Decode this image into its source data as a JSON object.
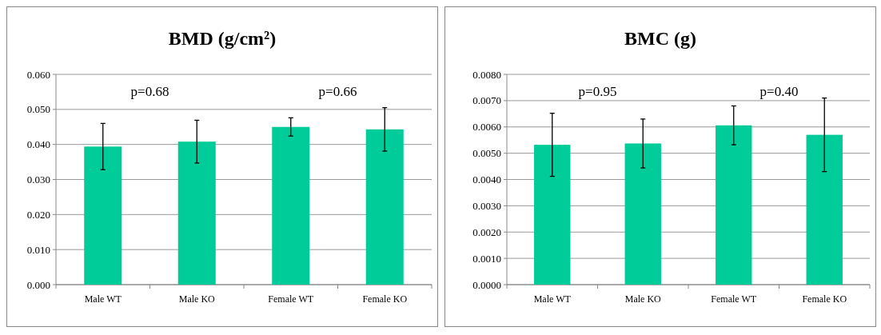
{
  "chart_data": [
    {
      "type": "bar",
      "title": "BMD (g/cm²)",
      "categories": [
        "Male WT",
        "Male KO",
        "Female WT",
        "Female KO"
      ],
      "values": [
        0.0394,
        0.0408,
        0.045,
        0.0443
      ],
      "errors": [
        0.0066,
        0.0061,
        0.0026,
        0.0062
      ],
      "color": "#00cc99",
      "ylim": [
        0,
        0.06
      ],
      "yticks": [
        {
          "value": 0,
          "label": "0.000"
        },
        {
          "value": 0.01,
          "label": "0.010"
        },
        {
          "value": 0.02,
          "label": "0.020"
        },
        {
          "value": 0.03,
          "label": "0.030"
        },
        {
          "value": 0.04,
          "label": "0.040"
        },
        {
          "value": 0.05,
          "label": "0.050"
        },
        {
          "value": 0.06,
          "label": "0.060"
        }
      ],
      "grid": "y",
      "annotations": [
        "p=0.68",
        "p=0.66"
      ]
    },
    {
      "type": "bar",
      "title": "BMC (g)",
      "categories": [
        "Male WT",
        "Male KO",
        "Female WT",
        "Female KO"
      ],
      "values": [
        0.00532,
        0.00537,
        0.00606,
        0.0057
      ],
      "errors": [
        0.0012,
        0.00093,
        0.00074,
        0.0014
      ],
      "color": "#00cc99",
      "ylim": [
        0,
        0.008
      ],
      "yticks": [
        {
          "value": 0,
          "label": "0.0000"
        },
        {
          "value": 0.001,
          "label": "0.0010"
        },
        {
          "value": 0.002,
          "label": "0.0020"
        },
        {
          "value": 0.003,
          "label": "0.0030"
        },
        {
          "value": 0.004,
          "label": "0.0040"
        },
        {
          "value": 0.005,
          "label": "0.0050"
        },
        {
          "value": 0.006,
          "label": "0.0060"
        },
        {
          "value": 0.007,
          "label": "0.0070"
        },
        {
          "value": 0.008,
          "label": "0.0080"
        }
      ],
      "grid": "y",
      "annotations": [
        "p=0.95",
        "p=0.40"
      ]
    }
  ]
}
